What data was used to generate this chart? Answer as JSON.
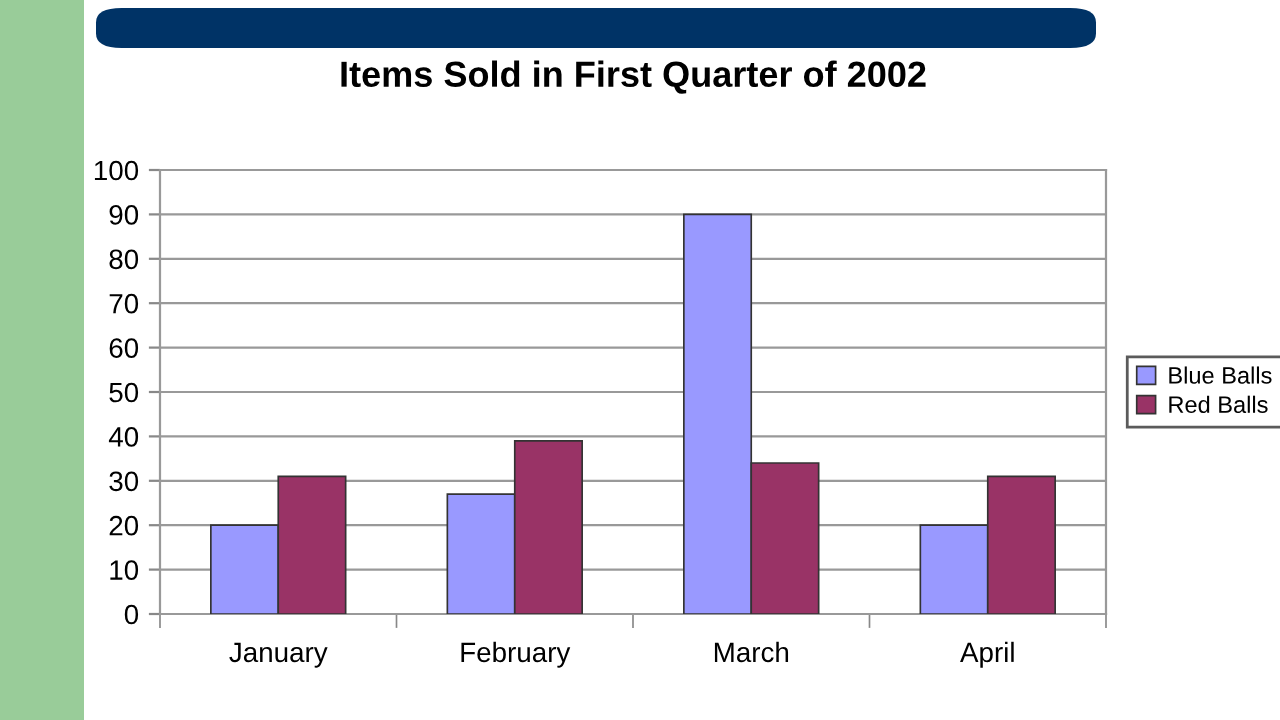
{
  "chart_data": {
    "type": "bar",
    "title": "Items Sold in First Quarter of 2002",
    "categories": [
      "January",
      "February",
      "March",
      "April"
    ],
    "series": [
      {
        "name": "Blue Balls",
        "color": "#9999ff",
        "values": [
          20,
          27,
          90,
          20
        ]
      },
      {
        "name": "Red Balls",
        "color": "#993366",
        "values": [
          31,
          39,
          34,
          31
        ]
      }
    ],
    "ylim": [
      0,
      100
    ],
    "yticks": [
      0,
      10,
      20,
      30,
      40,
      50,
      60,
      70,
      80,
      90,
      100
    ],
    "grid": "y",
    "legend": "right"
  }
}
